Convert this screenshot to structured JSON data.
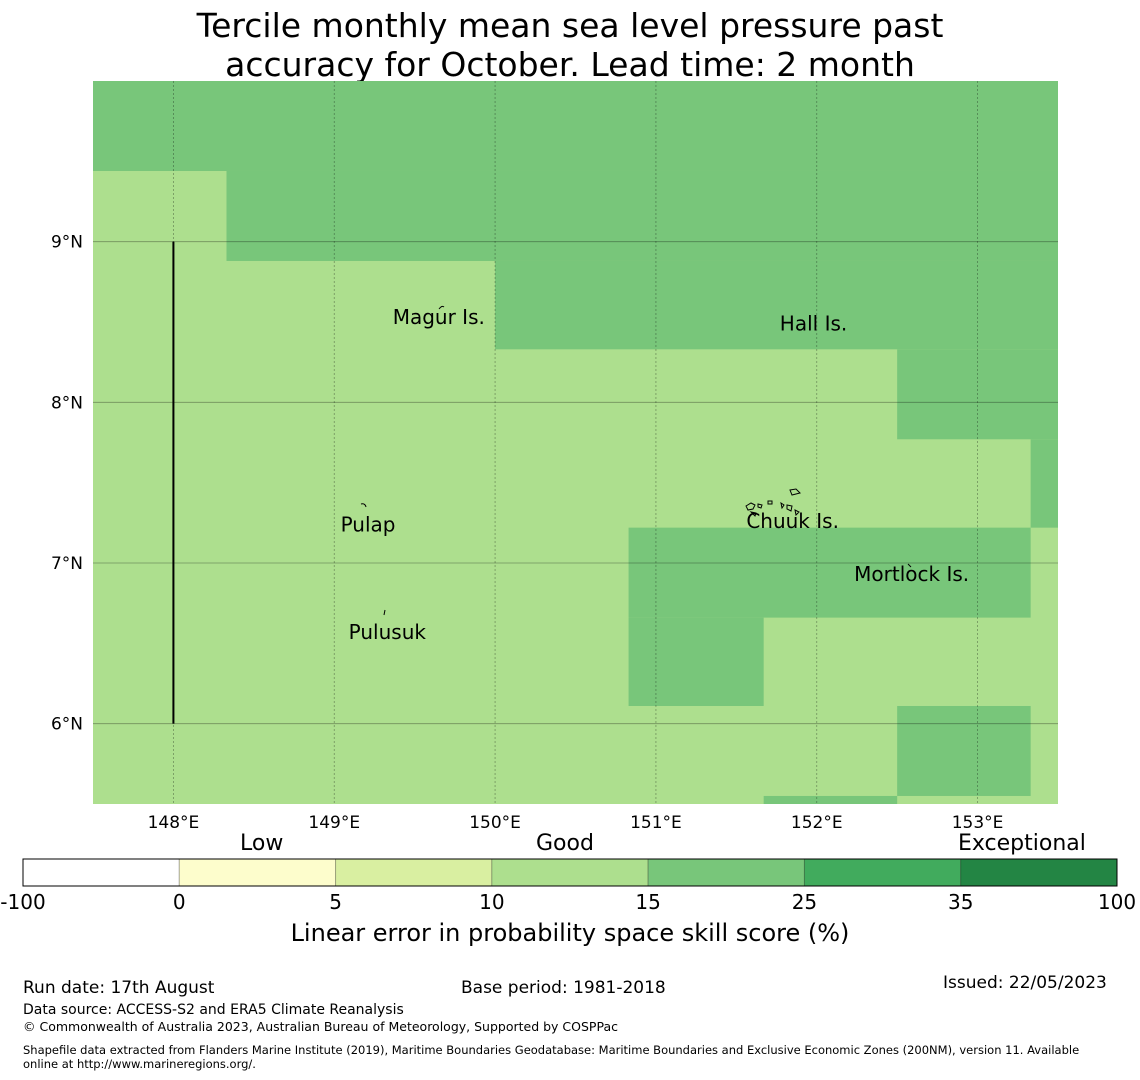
{
  "title_line1": "Tercile monthly mean sea level pressure past",
  "title_line2": "accuracy for October. Lead time: 2 month",
  "map": {
    "lon_range": [
      147.5,
      153.5
    ],
    "lat_range": [
      5.5,
      10.0
    ],
    "grid_on": true,
    "lon_ticks": [
      {
        "value": 148,
        "label": "148°E"
      },
      {
        "value": 149,
        "label": "149°E"
      },
      {
        "value": 150,
        "label": "150°E"
      },
      {
        "value": 151,
        "label": "151°E"
      },
      {
        "value": 152,
        "label": "152°E"
      },
      {
        "value": 153,
        "label": "153°E"
      }
    ],
    "lat_ticks": [
      {
        "value": 9,
        "label": "9°N"
      },
      {
        "value": 8,
        "label": "8°N"
      },
      {
        "value": 7,
        "label": "7°N"
      },
      {
        "value": 6,
        "label": "6°N"
      }
    ],
    "background_class": "10-15",
    "skill_cells": [
      {
        "lon": [
          147.5,
          153.5
        ],
        "lat": [
          9.44,
          10.0
        ],
        "class": "15-25"
      },
      {
        "lon": [
          148.33,
          153.5
        ],
        "lat": [
          8.88,
          9.44
        ],
        "class": "15-25"
      },
      {
        "lon": [
          150.0,
          153.5
        ],
        "lat": [
          8.33,
          8.88
        ],
        "class": "15-25"
      },
      {
        "lon": [
          152.5,
          153.5
        ],
        "lat": [
          7.77,
          8.33
        ],
        "class": "15-25"
      },
      {
        "lon": [
          153.33,
          153.5
        ],
        "lat": [
          7.22,
          7.77
        ],
        "class": "15-25"
      },
      {
        "lon": [
          150.83,
          153.33
        ],
        "lat": [
          6.66,
          7.22
        ],
        "class": "15-25"
      },
      {
        "lon": [
          150.83,
          151.67
        ],
        "lat": [
          6.11,
          6.66
        ],
        "class": "15-25"
      },
      {
        "lon": [
          152.5,
          153.33
        ],
        "lat": [
          5.55,
          6.11
        ],
        "class": "15-25"
      },
      {
        "lon": [
          151.67,
          152.5
        ],
        "lat": [
          5.5,
          5.55
        ],
        "class": "15-25"
      }
    ],
    "boundary_line": {
      "lon": 148.0,
      "lat": [
        6.0,
        9.0
      ]
    },
    "places": [
      {
        "name": "Magur Is.",
        "lon": 149.65,
        "lat": 8.53
      },
      {
        "name": "Hall Is.",
        "lon": 151.98,
        "lat": 8.49
      },
      {
        "name": "Pulap",
        "lon": 149.21,
        "lat": 7.24
      },
      {
        "name": "Chuuk Is.",
        "lon": 151.85,
        "lat": 7.26
      },
      {
        "name": "Mortlock Is.",
        "lon": 152.59,
        "lat": 6.93
      },
      {
        "name": "Pulusuk",
        "lon": 149.33,
        "lat": 6.57
      }
    ]
  },
  "colorbar": {
    "categories": {
      "low": "Low",
      "good": "Good",
      "exceptional": "Exceptional"
    },
    "segments": [
      {
        "color": "#ffffff"
      },
      {
        "color": "#fdfdcc"
      },
      {
        "color": "#d9efa1"
      },
      {
        "color": "#addf8e"
      },
      {
        "color": "#78c67a"
      },
      {
        "color": "#41ab5d"
      },
      {
        "color": "#238544"
      }
    ],
    "tick_labels": [
      "-100",
      "0",
      "5",
      "10",
      "15",
      "25",
      "35",
      "100"
    ],
    "label": "Linear error in probability space skill score (%)"
  },
  "class_colors": {
    "10-15": "#addf8e",
    "15-25": "#78c67a"
  },
  "footer": {
    "run_date": "Run date: 17th August",
    "base_period": "Base period: 1981-2018",
    "issued": "Issued: 22/05/2023",
    "data_source": "Data source: ACCESS-S2 and ERA5 Climate Reanalysis",
    "copyright": "© Commonwealth of Australia 2023, Australian Bureau of Meteorology, Supported by COSPPac",
    "shapefile_line1": "Shapefile data extracted from Flanders Marine Institute (2019), Maritime Boundaries Geodatabase: Maritime Boundaries and Exclusive Economic Zones (200NM), version 11. Available",
    "shapefile_line2": "online at http://www.marineregions.org/."
  }
}
